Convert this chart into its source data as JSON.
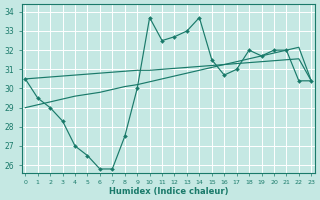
{
  "xlabel": "Humidex (Indice chaleur)",
  "xlim": [
    -0.3,
    23.3
  ],
  "ylim": [
    25.6,
    34.4
  ],
  "yticks": [
    26,
    27,
    28,
    29,
    30,
    31,
    32,
    33,
    34
  ],
  "xticks": [
    0,
    1,
    2,
    3,
    4,
    5,
    6,
    7,
    8,
    9,
    10,
    11,
    12,
    13,
    14,
    15,
    16,
    17,
    18,
    19,
    20,
    21,
    22,
    23
  ],
  "bg_color": "#c5e8e3",
  "line_color": "#1a7a6a",
  "jagged_y": [
    30.5,
    29.5,
    29.0,
    28.3,
    27.0,
    26.5,
    25.8,
    25.8,
    27.5,
    30.0,
    33.7,
    32.5,
    32.7,
    33.0,
    33.7,
    31.5,
    30.7,
    31.0,
    32.0,
    31.7,
    32.0,
    32.0,
    30.4,
    30.4
  ],
  "trend1_y": [
    30.5,
    30.55,
    30.6,
    30.65,
    30.7,
    30.75,
    30.8,
    30.85,
    30.9,
    30.95,
    30.95,
    31.0,
    31.05,
    31.1,
    31.15,
    31.2,
    31.25,
    31.3,
    31.35,
    31.4,
    31.45,
    31.5,
    31.55,
    30.4
  ],
  "trend2_y": [
    29.0,
    29.15,
    29.3,
    29.45,
    29.6,
    29.7,
    29.8,
    29.95,
    30.1,
    30.2,
    30.35,
    30.5,
    30.65,
    30.8,
    30.95,
    31.1,
    31.25,
    31.4,
    31.55,
    31.7,
    31.85,
    32.0,
    32.15,
    30.4
  ]
}
